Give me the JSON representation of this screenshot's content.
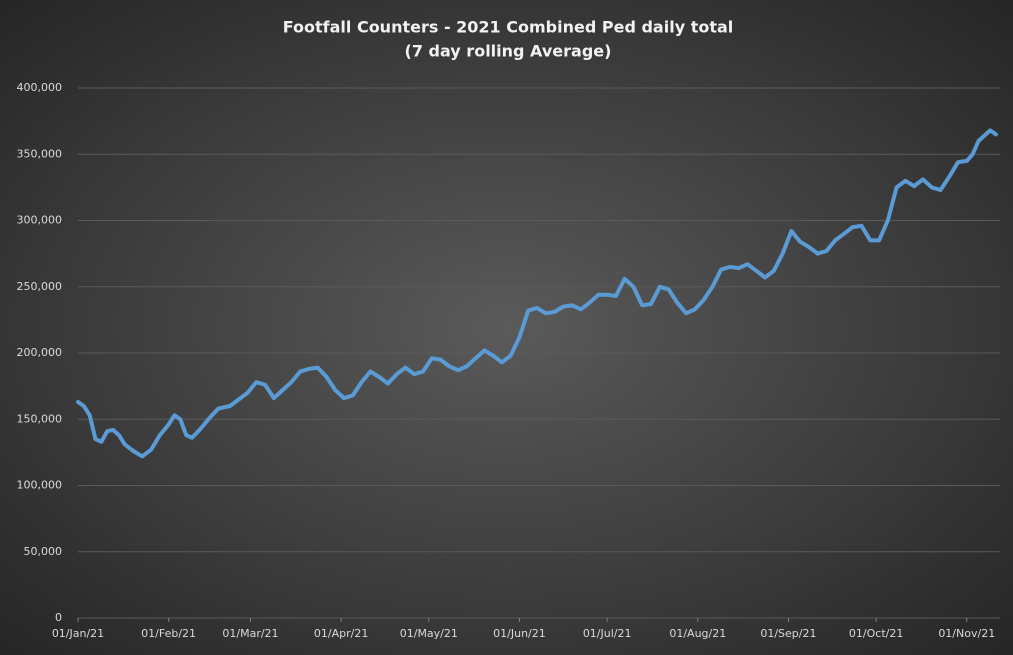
{
  "chart_data": {
    "type": "line",
    "title": "Footfall Counters - 2021 Combined Ped daily total",
    "subtitle": "(7 day rolling Average)",
    "color": "#5b9bd5",
    "grid": true,
    "x": [
      "2021-01-01",
      "2021-01-03",
      "2021-01-05",
      "2021-01-07",
      "2021-01-09",
      "2021-01-11",
      "2021-01-13",
      "2021-01-15",
      "2021-01-17",
      "2021-01-20",
      "2021-01-23",
      "2021-01-26",
      "2021-01-29",
      "2021-02-01",
      "2021-02-03",
      "2021-02-05",
      "2021-02-07",
      "2021-02-09",
      "2021-02-12",
      "2021-02-15",
      "2021-02-18",
      "2021-02-22",
      "2021-02-25",
      "2021-02-28",
      "2021-03-03",
      "2021-03-06",
      "2021-03-09",
      "2021-03-12",
      "2021-03-15",
      "2021-03-18",
      "2021-03-21",
      "2021-03-24",
      "2021-03-27",
      "2021-03-30",
      "2021-04-02",
      "2021-04-05",
      "2021-04-08",
      "2021-04-11",
      "2021-04-14",
      "2021-04-17",
      "2021-04-20",
      "2021-04-23",
      "2021-04-26",
      "2021-04-29",
      "2021-05-02",
      "2021-05-05",
      "2021-05-08",
      "2021-05-11",
      "2021-05-14",
      "2021-05-17",
      "2021-05-20",
      "2021-05-23",
      "2021-05-26",
      "2021-05-29",
      "2021-06-01",
      "2021-06-04",
      "2021-06-07",
      "2021-06-10",
      "2021-06-13",
      "2021-06-16",
      "2021-06-19",
      "2021-06-22",
      "2021-06-25",
      "2021-06-28",
      "2021-07-01",
      "2021-07-04",
      "2021-07-07",
      "2021-07-10",
      "2021-07-13",
      "2021-07-16",
      "2021-07-19",
      "2021-07-22",
      "2021-07-25",
      "2021-07-28",
      "2021-07-31",
      "2021-08-03",
      "2021-08-06",
      "2021-08-09",
      "2021-08-12",
      "2021-08-15",
      "2021-08-18",
      "2021-08-21",
      "2021-08-24",
      "2021-08-27",
      "2021-08-30",
      "2021-09-02",
      "2021-09-05",
      "2021-09-08",
      "2021-09-11",
      "2021-09-14",
      "2021-09-17",
      "2021-09-20",
      "2021-09-23",
      "2021-09-26",
      "2021-09-29",
      "2021-10-02",
      "2021-10-05",
      "2021-10-08",
      "2021-10-11",
      "2021-10-14",
      "2021-10-17",
      "2021-10-20",
      "2021-10-23",
      "2021-10-26",
      "2021-10-29",
      "2021-11-01",
      "2021-11-03",
      "2021-11-05",
      "2021-11-07",
      "2021-11-09",
      "2021-11-11"
    ],
    "values": [
      163000,
      160000,
      153000,
      135000,
      133000,
      141000,
      142000,
      138000,
      131000,
      126000,
      122000,
      127000,
      138000,
      146000,
      153000,
      150000,
      138000,
      136000,
      143000,
      151000,
      158000,
      160000,
      165000,
      170000,
      178000,
      176000,
      166000,
      172000,
      178000,
      186000,
      188000,
      189000,
      182000,
      172000,
      166000,
      168000,
      178000,
      186000,
      182000,
      177000,
      184000,
      189000,
      184000,
      186000,
      196000,
      195000,
      190000,
      187000,
      190000,
      196000,
      202000,
      198000,
      193000,
      198000,
      212000,
      232000,
      234000,
      230000,
      231000,
      235000,
      236000,
      233000,
      238000,
      244000,
      244000,
      243000,
      256000,
      250000,
      236000,
      237000,
      250000,
      248000,
      238000,
      230000,
      233000,
      240000,
      250000,
      263000,
      265000,
      264000,
      267000,
      262000,
      257000,
      262000,
      275000,
      292000,
      284000,
      280000,
      275000,
      277000,
      285000,
      290000,
      295000,
      296000,
      285000,
      285000,
      300000,
      325000,
      330000,
      326000,
      331000,
      325000,
      323000,
      333000,
      344000,
      345000,
      350000,
      360000,
      364000,
      368000,
      365000
    ],
    "xlim": [
      "2021-01-01",
      "2021-11-11"
    ],
    "xticks": [
      {
        "value": "2021-01-01",
        "label": "01/Jan/21"
      },
      {
        "value": "2021-02-01",
        "label": "01/Feb/21"
      },
      {
        "value": "2021-03-01",
        "label": "01/Mar/21"
      },
      {
        "value": "2021-04-01",
        "label": "01/Apr/21"
      },
      {
        "value": "2021-05-01",
        "label": "01/May/21"
      },
      {
        "value": "2021-06-01",
        "label": "01/Jun/21"
      },
      {
        "value": "2021-07-01",
        "label": "01/Jul/21"
      },
      {
        "value": "2021-08-01",
        "label": "01/Aug/21"
      },
      {
        "value": "2021-09-01",
        "label": "01/Sep/21"
      },
      {
        "value": "2021-10-01",
        "label": "01/Oct/21"
      },
      {
        "value": "2021-11-01",
        "label": "01/Nov/21"
      }
    ],
    "ylim": [
      0,
      400000
    ],
    "yticks": [
      0,
      {
        "value": 50000,
        "label": "50,000"
      },
      {
        "value": 100000,
        "label": "100,000"
      },
      {
        "value": 150000,
        "label": "150,000"
      },
      {
        "value": 200000,
        "label": "200,000"
      },
      {
        "value": 250000,
        "label": "250,000"
      },
      {
        "value": 300000,
        "label": "300,000"
      },
      {
        "value": 350000,
        "label": "350,000"
      },
      {
        "value": 400000,
        "label": "400,000"
      }
    ]
  }
}
